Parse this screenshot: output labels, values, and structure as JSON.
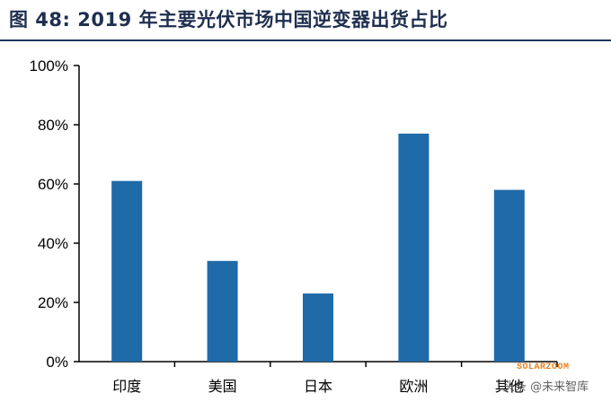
{
  "header": {
    "title": "图 48: 2019 年主要光伏市场中国逆变器出货占比"
  },
  "colors": {
    "bar": "#1f6aa8",
    "axis": "#000000",
    "title": "#1f2f4f",
    "watermark_brand": "#e8811a"
  },
  "watermark": {
    "brand": "SOLARZOOM",
    "text": "头条 @未来智库"
  },
  "chart_data": {
    "type": "bar",
    "title": "图 48: 2019 年主要光伏市场中国逆变器出货占比",
    "categories": [
      "印度",
      "美国",
      "日本",
      "欧洲",
      "其他"
    ],
    "values": [
      61,
      34,
      23,
      77,
      58
    ],
    "ylim": [
      0,
      100
    ],
    "yticks": [
      "0%",
      "20%",
      "40%",
      "60%",
      "80%",
      "100%"
    ],
    "xlabel": "",
    "ylabel": "",
    "grid": false,
    "legend": "none"
  }
}
